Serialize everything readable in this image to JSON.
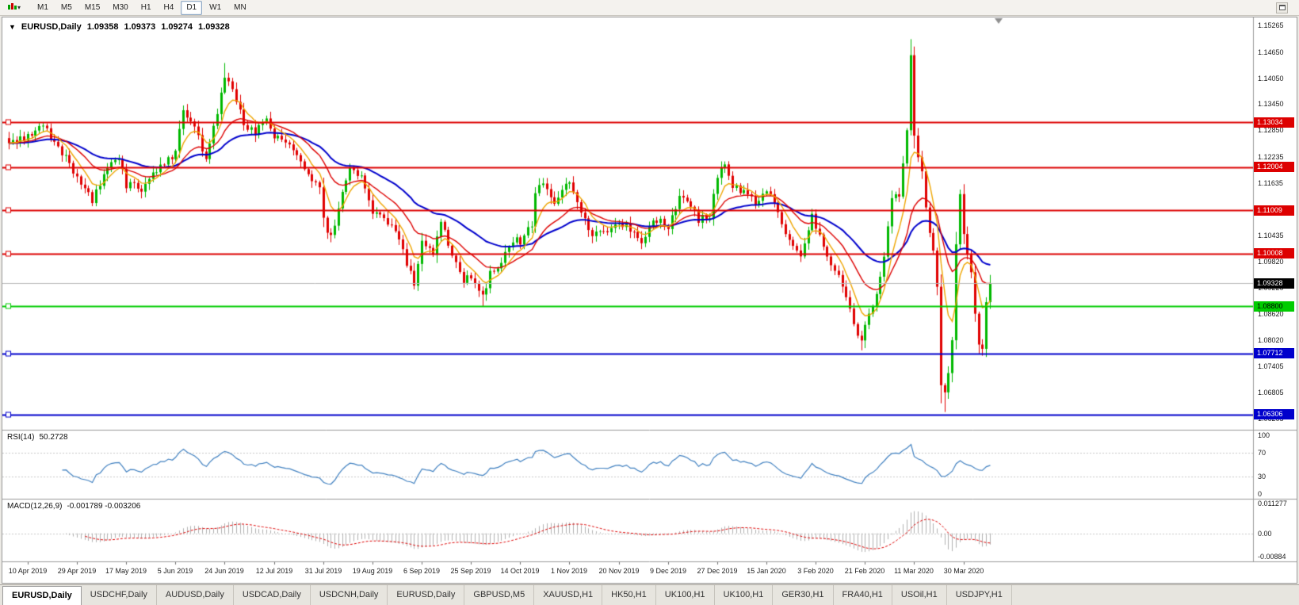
{
  "icons": {
    "chart_type": "candlestick-chart-icon",
    "dropdown": "chevron-down-icon",
    "context_dropdown": "context-dropdown-icon",
    "restore": "restore-icon"
  },
  "toolbar": {
    "timeframes": [
      "M1",
      "M5",
      "M15",
      "M30",
      "H1",
      "H4",
      "D1",
      "W1",
      "MN"
    ],
    "active_timeframe": "D1"
  },
  "chart_header": {
    "dropdown_glyph": "▼",
    "title": "EURUSD,Daily",
    "open": "1.09358",
    "high": "1.09373",
    "low": "1.09274",
    "close": "1.09328"
  },
  "price_axis": {
    "labels": [
      "1.15265",
      "1.14650",
      "1.14050",
      "1.13450",
      "1.12850",
      "1.12235",
      "1.11635",
      "1.11035",
      "1.10435",
      "1.09820",
      "1.09220",
      "1.08620",
      "1.08020",
      "1.07405",
      "1.06805",
      "1.06205"
    ]
  },
  "hlines": [
    {
      "label": "1.13034",
      "color": "#dd0000",
      "text_color": "#ffffff",
      "line_width": 2
    },
    {
      "label": "1.12004",
      "color": "#dd0000",
      "text_color": "#ffffff",
      "line_width": 2
    },
    {
      "label": "1.11009",
      "color": "#dd0000",
      "text_color": "#ffffff",
      "line_width": 2
    },
    {
      "label": "1.10008",
      "color": "#dd0000",
      "text_color": "#ffffff",
      "line_width": 2
    },
    {
      "label": "1.08800",
      "color": "#00cc00",
      "text_color": "#000000",
      "line_width": 2
    },
    {
      "label": "1.07712",
      "color": "#0000cc",
      "text_color": "#ffffff",
      "line_width": 2
    },
    {
      "label": "1.06306",
      "color": "#0000cc",
      "text_color": "#ffffff",
      "line_width": 2
    }
  ],
  "current_price": {
    "price": 1.09328,
    "label": "1.09328",
    "line_color": "#b8b8b8",
    "badge_bg": "#000000",
    "badge_text": "#ffffff"
  },
  "rsi_panel": {
    "name": "RSI(14)",
    "value": "50.2728",
    "line_color": "#4080c0",
    "levels": [
      70,
      30
    ],
    "axis": [
      {
        "text": "100",
        "v": 100
      },
      {
        "text": "70",
        "v": 70
      },
      {
        "text": "30",
        "v": 30
      },
      {
        "text": "0",
        "v": 0
      }
    ]
  },
  "macd_panel": {
    "name": "MACD(12,26,9)",
    "values": "-0.001789 -0.003206",
    "hist_color": "#b0b0b0",
    "signal_color": "#dd0000",
    "axis_top": "0.011277",
    "axis_zero": "0.00",
    "axis_bottom": "-0.00884"
  },
  "time_axis": {
    "dates": [
      "10 Apr 2019",
      "29 Apr 2019",
      "17 May 2019",
      "5 Jun 2019",
      "24 Jun 2019",
      "12 Jul 2019",
      "31 Jul 2019",
      "19 Aug 2019",
      "6 Sep 2019",
      "25 Sep 2019",
      "14 Oct 2019",
      "1 Nov 2019",
      "20 Nov 2019",
      "9 Dec 2019",
      "27 Dec 2019",
      "15 Jan 2020",
      "3 Feb 2020",
      "21 Feb 2020",
      "11 Mar 2020",
      "30 Mar 2020"
    ]
  },
  "tabs": [
    {
      "label": "EURUSD,Daily",
      "active": true
    },
    {
      "label": "USDCHF,Daily",
      "active": false
    },
    {
      "label": "AUDUSD,Daily",
      "active": false
    },
    {
      "label": "USDCAD,Daily",
      "active": false
    },
    {
      "label": "USDCNH,Daily",
      "active": false
    },
    {
      "label": "EURUSD,Daily",
      "active": false
    },
    {
      "label": "GBPUSD,M5",
      "active": false
    },
    {
      "label": "XAUUSD,H1",
      "active": false
    },
    {
      "label": "HK50,H1",
      "active": false
    },
    {
      "label": "UK100,H1",
      "active": false
    },
    {
      "label": "UK100,H1",
      "active": false
    },
    {
      "label": "GER30,H1",
      "active": false
    },
    {
      "label": "FRA40,H1",
      "active": false
    },
    {
      "label": "USOil,H1",
      "active": false
    },
    {
      "label": "USDJPY,H1",
      "active": false
    }
  ],
  "chart_data": {
    "type": "candlestick",
    "symbol": "EURUSD",
    "timeframe": "Daily",
    "candle_count": 260,
    "candle_spacing": 4.78,
    "tick_start": 5,
    "tick_step": 13,
    "price_range": [
      1.0595,
      1.1545
    ],
    "macd_range": [
      -0.00884,
      0.011277
    ],
    "up_color": "#00b800",
    "down_color": "#e00000",
    "moving_averages": [
      {
        "period": 40,
        "color": "#0000cc",
        "width": 2
      },
      {
        "period": 18,
        "color": "#dd0000",
        "width": 1.4
      },
      {
        "period": 7,
        "color": "#eea500",
        "width": 1.4
      }
    ],
    "close_anchors": [
      [
        0,
        1.1255
      ],
      [
        5,
        1.127
      ],
      [
        9,
        1.1295
      ],
      [
        13,
        1.125
      ],
      [
        18,
        1.118
      ],
      [
        22,
        1.1125
      ],
      [
        26,
        1.1195
      ],
      [
        29,
        1.1225
      ],
      [
        31,
        1.116
      ],
      [
        35,
        1.115
      ],
      [
        38,
        1.118
      ],
      [
        41,
        1.121
      ],
      [
        44,
        1.123
      ],
      [
        46,
        1.133
      ],
      [
        49,
        1.129
      ],
      [
        52,
        1.1215
      ],
      [
        54,
        1.129
      ],
      [
        57,
        1.14
      ],
      [
        59,
        1.138
      ],
      [
        62,
        1.13
      ],
      [
        65,
        1.128
      ],
      [
        68,
        1.1315
      ],
      [
        70,
        1.127
      ],
      [
        73,
        1.126
      ],
      [
        76,
        1.122
      ],
      [
        79,
        1.118
      ],
      [
        82,
        1.115
      ],
      [
        83,
        1.1075
      ],
      [
        85,
        1.104
      ],
      [
        87,
        1.1105
      ],
      [
        90,
        1.1195
      ],
      [
        93,
        1.118
      ],
      [
        96,
        1.11
      ],
      [
        99,
        1.1085
      ],
      [
        102,
        1.106
      ],
      [
        105,
        1.098
      ],
      [
        107,
        1.0935
      ],
      [
        109,
        1.1025
      ],
      [
        112,
        1.1
      ],
      [
        114,
        1.107
      ],
      [
        117,
        1.1
      ],
      [
        120,
        1.094
      ],
      [
        122,
        1.0945
      ],
      [
        125,
        1.09
      ],
      [
        127,
        1.096
      ],
      [
        130,
        1.098
      ],
      [
        133,
        1.103
      ],
      [
        135,
        1.103
      ],
      [
        138,
        1.107
      ],
      [
        139,
        1.114
      ],
      [
        141,
        1.116
      ],
      [
        144,
        1.111
      ],
      [
        146,
        1.115
      ],
      [
        148,
        1.1165
      ],
      [
        151,
        1.11
      ],
      [
        154,
        1.104
      ],
      [
        157,
        1.105
      ],
      [
        161,
        1.1075
      ],
      [
        164,
        1.106
      ],
      [
        167,
        1.102
      ],
      [
        170,
        1.108
      ],
      [
        174,
        1.1065
      ],
      [
        177,
        1.113
      ],
      [
        179,
        1.112
      ],
      [
        182,
        1.108
      ],
      [
        185,
        1.109
      ],
      [
        187,
        1.1175
      ],
      [
        189,
        1.121
      ],
      [
        191,
        1.116
      ],
      [
        194,
        1.114
      ],
      [
        197,
        1.112
      ],
      [
        200,
        1.115
      ],
      [
        203,
        1.1095
      ],
      [
        206,
        1.1025
      ],
      [
        209,
        1.1
      ],
      [
        212,
        1.109
      ],
      [
        213,
        1.106
      ],
      [
        216,
        1.0995
      ],
      [
        219,
        1.095
      ],
      [
        222,
        1.087
      ],
      [
        225,
        1.0795
      ],
      [
        226,
        1.0845
      ],
      [
        228,
        1.088
      ],
      [
        231,
        1.099
      ],
      [
        233,
        1.1135
      ],
      [
        235,
        1.114
      ],
      [
        237,
        1.128
      ],
      [
        238,
        1.145
      ],
      [
        239,
        1.127
      ],
      [
        241,
        1.1185
      ],
      [
        242,
        1.1105
      ],
      [
        244,
        1.1
      ],
      [
        245,
        1.092
      ],
      [
        246,
        1.069
      ],
      [
        247,
        1.069
      ],
      [
        248,
        1.072
      ],
      [
        249,
        1.08
      ],
      [
        250,
        1.103
      ],
      [
        251,
        1.114
      ],
      [
        252,
        1.1045
      ],
      [
        253,
        1.099
      ],
      [
        254,
        1.096
      ],
      [
        255,
        1.0855
      ],
      [
        256,
        1.08
      ],
      [
        257,
        1.079
      ],
      [
        258,
        1.0895
      ],
      [
        259,
        1.09328
      ]
    ],
    "overrides": {
      "57": {
        "h": 1.144
      },
      "85": {
        "l": 1.1027
      },
      "107": {
        "l": 1.0926
      },
      "125": {
        "l": 1.0879
      },
      "225": {
        "l": 1.0778
      },
      "238": {
        "h": 1.1495
      },
      "246": {
        "l": 1.0656
      },
      "247": {
        "l": 1.0636
      },
      "251": {
        "h": 1.1148
      },
      "259": {
        "h": 1.09373
      }
    }
  }
}
